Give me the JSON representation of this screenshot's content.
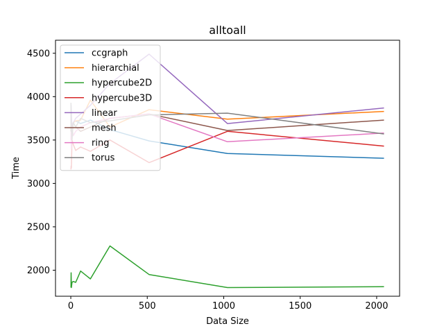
{
  "chart_data": {
    "type": "line",
    "title": "alltoall",
    "xlabel": "Data Size",
    "ylabel": "Time",
    "xlim": [
      -100,
      2150
    ],
    "ylim": [
      1700,
      4650
    ],
    "xticks": [
      0,
      500,
      1000,
      1500,
      2000
    ],
    "yticks": [
      2000,
      2500,
      3000,
      3500,
      4000,
      4500
    ],
    "grid": false,
    "legend_position": "top-left",
    "x": [
      1,
      2,
      4,
      8,
      16,
      32,
      64,
      128,
      256,
      512,
      1024,
      2048
    ],
    "series": [
      {
        "name": "ccgraph",
        "color": "#1f77b4",
        "values": [
          3700,
          3750,
          3600,
          3650,
          3700,
          3720,
          3690,
          3730,
          3620,
          3490,
          3345,
          3290
        ]
      },
      {
        "name": "hierarchial",
        "color": "#ff7f0e",
        "values": [
          3600,
          3650,
          3620,
          3550,
          3700,
          3720,
          3730,
          3960,
          3650,
          3850,
          3740,
          3830
        ]
      },
      {
        "name": "hypercube2D",
        "color": "#2ca02c",
        "values": [
          1800,
          1970,
          1800,
          1860,
          1870,
          1860,
          1990,
          1900,
          2280,
          1950,
          1800,
          1810
        ]
      },
      {
        "name": "hypercube3D",
        "color": "#d62728",
        "values": [
          3160,
          3200,
          3180,
          3500,
          3450,
          3380,
          3420,
          3370,
          3500,
          3240,
          3600,
          3430
        ]
      },
      {
        "name": "linear",
        "color": "#9467bd",
        "values": [
          3700,
          3900,
          3800,
          3650,
          3700,
          3750,
          3800,
          3900,
          4150,
          4490,
          3690,
          3870
        ]
      },
      {
        "name": "mesh",
        "color": "#8c564b",
        "values": [
          3600,
          3700,
          3650,
          3600,
          3700,
          3650,
          3600,
          3650,
          3750,
          3800,
          3610,
          3730
        ]
      },
      {
        "name": "ring",
        "color": "#e377c2",
        "values": [
          3500,
          3600,
          3400,
          3650,
          3550,
          3600,
          3650,
          3700,
          3750,
          3800,
          3480,
          3580
        ]
      },
      {
        "name": "torus",
        "color": "#7f7f7f",
        "values": [
          3930,
          3600,
          3650,
          3500,
          3700,
          3650,
          3750,
          3700,
          3720,
          3790,
          3810,
          3570
        ]
      }
    ]
  }
}
